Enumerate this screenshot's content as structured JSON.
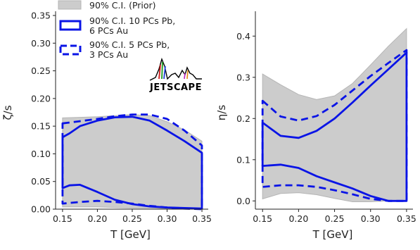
{
  "legend": {
    "prior": "90% C.I. (Prior)",
    "ten_pcs": [
      "90% C.I. 10 PCs Pb,",
      " 6 PCs Au"
    ],
    "five_pcs": [
      "90% C.I. 5 PCs Pb,",
      " 3 PCs Au"
    ],
    "placement": "upper-left"
  },
  "logo": {
    "text": "JETSCAPE"
  },
  "colors": {
    "prior_fill": "#cccccc",
    "prior_edge": "#b5b5b5",
    "posterior": "#0a14e6",
    "axis": "#222222"
  },
  "chart_data": [
    {
      "type": "area",
      "xlabel": "T [GeV]",
      "ylabel": "ζ/s",
      "xlim": [
        0.14,
        0.355
      ],
      "ylim": [
        0.0,
        0.35
      ],
      "xticks": [
        "0.15",
        "0.20",
        "0.25",
        "0.30",
        "0.35"
      ],
      "yticks": [
        "0.00",
        "0.05",
        "0.10",
        "0.15",
        "0.20",
        "0.25",
        "0.30",
        "0.35"
      ],
      "grid": false,
      "series": [
        {
          "x": [
            0.15,
            0.175,
            0.2,
            0.225,
            0.25,
            0.275,
            0.3,
            0.325,
            0.35
          ],
          "upper": [
            0.165,
            0.166,
            0.167,
            0.169,
            0.171,
            0.169,
            0.158,
            0.143,
            0.123
          ],
          "lower": [
            0.004,
            0.004,
            0.004,
            0.003,
            0.002,
            0.002,
            0.001,
            0.001,
            0.0
          ]
        },
        {
          "x": [
            0.15,
            0.16,
            0.175,
            0.2,
            0.225,
            0.25,
            0.275,
            0.3,
            0.325,
            0.35
          ],
          "upper": [
            0.13,
            0.137,
            0.15,
            0.16,
            0.166,
            0.167,
            0.16,
            0.142,
            0.123,
            0.102
          ],
          "lower": [
            0.038,
            0.043,
            0.044,
            0.031,
            0.017,
            0.009,
            0.005,
            0.003,
            0.002,
            0.001
          ]
        },
        {
          "x": [
            0.15,
            0.175,
            0.2,
            0.225,
            0.25,
            0.275,
            0.3,
            0.325,
            0.35
          ],
          "upper": [
            0.155,
            0.159,
            0.163,
            0.168,
            0.171,
            0.171,
            0.163,
            0.142,
            0.115
          ],
          "lower": [
            0.01,
            0.013,
            0.015,
            0.013,
            0.01,
            0.006,
            0.003,
            0.001,
            0.0
          ]
        }
      ]
    },
    {
      "type": "area",
      "xlabel": "T [GeV]",
      "ylabel": "η/s",
      "xlim": [
        0.14,
        0.355
      ],
      "ylim": [
        -0.02,
        0.45
      ],
      "xticks": [
        "0.15",
        "0.20",
        "0.25",
        "0.30",
        "0.35"
      ],
      "yticks": [
        "0.0",
        "0.1",
        "0.2",
        "0.3",
        "0.4"
      ],
      "grid": false,
      "series": [
        {
          "x": [
            0.15,
            0.175,
            0.2,
            0.225,
            0.25,
            0.275,
            0.3,
            0.325,
            0.35
          ],
          "upper": [
            0.308,
            0.282,
            0.258,
            0.246,
            0.255,
            0.285,
            0.33,
            0.376,
            0.418
          ],
          "lower": [
            0.005,
            0.018,
            0.02,
            0.015,
            0.006,
            -0.002,
            -0.002,
            0.0,
            0.0
          ]
        },
        {
          "x": [
            0.15,
            0.175,
            0.2,
            0.225,
            0.25,
            0.275,
            0.3,
            0.325,
            0.35
          ],
          "upper": [
            0.19,
            0.158,
            0.153,
            0.17,
            0.2,
            0.239,
            0.28,
            0.32,
            0.36
          ],
          "lower": [
            0.085,
            0.088,
            0.08,
            0.06,
            0.045,
            0.03,
            0.012,
            0.0,
            0.0
          ]
        },
        {
          "x": [
            0.15,
            0.175,
            0.2,
            0.225,
            0.25,
            0.275,
            0.3,
            0.325,
            0.35
          ],
          "upper": [
            0.243,
            0.205,
            0.195,
            0.206,
            0.233,
            0.268,
            0.303,
            0.335,
            0.366
          ],
          "lower": [
            0.034,
            0.038,
            0.038,
            0.034,
            0.026,
            0.016,
            0.005,
            0.0,
            0.0
          ]
        }
      ]
    }
  ]
}
